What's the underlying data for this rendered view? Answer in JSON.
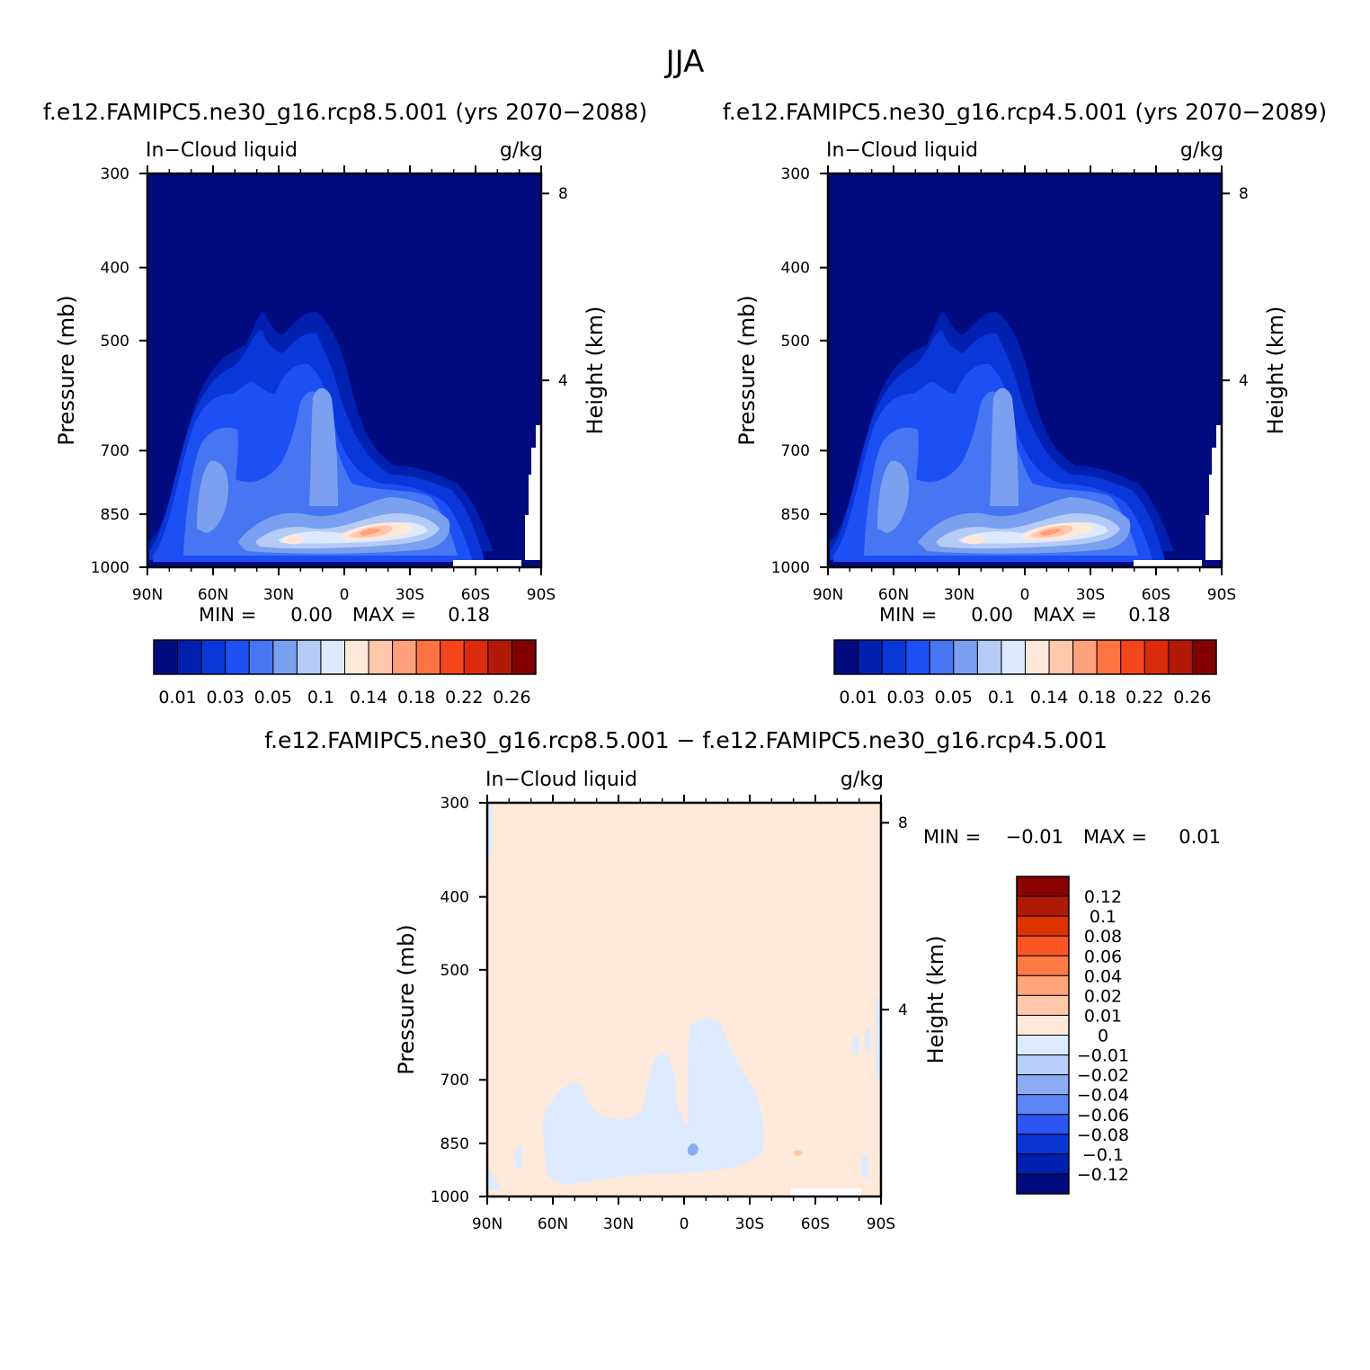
{
  "page": {
    "title": "JJA",
    "diff_title": "f.e12.FAMIPC5.ne30_g16.rcp8.5.001 − f.e12.FAMIPC5.ne30_g16.rcp4.5.001"
  },
  "palette": {
    "abs": [
      "#000b80",
      "#0020b0",
      "#0a37d8",
      "#1c50f5",
      "#4676f2",
      "#7ba0f0",
      "#b4cbf6",
      "#dbeaff",
      "#ffe8d8",
      "#ffc7ac",
      "#ffa07a",
      "#ff7340",
      "#f5461a",
      "#dc2b0a",
      "#b31a06",
      "#820000"
    ],
    "diff_above_to_below": [
      "#8b0000",
      "#b01a05",
      "#dd3300",
      "#ff5525",
      "#ff7a45",
      "#ffa37a",
      "#ffc8aa",
      "#ffe9da",
      "#dcebff",
      "#b8cdfa",
      "#8cabf5",
      "#5b85f2",
      "#2a57f2",
      "#0a35d5",
      "#0020b0",
      "#000b80"
    ]
  },
  "chart_data": [
    {
      "type": "heatmap",
      "title": "f.e12.FAMIPC5.ne30_g16.rcp8.5.001 (yrs 2070−2088)",
      "variable": "In−Cloud liquid",
      "units": "g/kg",
      "xlabel": "",
      "ylabel": "Pressure (mb)",
      "y2label": "Height (km)",
      "x_ticks": [
        "90N",
        "60N",
        "30N",
        "0",
        "30S",
        "60S",
        "90S"
      ],
      "x_range": [
        90,
        -90
      ],
      "y_ticks": [
        300,
        400,
        500,
        700,
        850,
        1000
      ],
      "y_range": [
        1000,
        300
      ],
      "y_scale": "log",
      "y2_ticks": [
        "8",
        "4"
      ],
      "min_label": "MIN =",
      "min_value": "0.00",
      "max_label": "MAX =",
      "max_value": "0.18",
      "colorbar_labels": [
        "0.01",
        "0.03",
        "0.05",
        "0.1",
        "0.14",
        "0.18",
        "0.22",
        "0.26"
      ],
      "colorbar_levels": [
        "0",
        "0.01",
        "0.02",
        "0.03",
        "0.04",
        "0.05",
        "0.08",
        "0.1",
        "0.12",
        "0.14",
        "0.16",
        "0.18",
        "0.2",
        "0.22",
        "0.24",
        "0.26"
      ],
      "legend_placement": "bottom"
    },
    {
      "type": "heatmap",
      "title": "f.e12.FAMIPC5.ne30_g16.rcp4.5.001 (yrs 2070−2089)",
      "variable": "In−Cloud liquid",
      "units": "g/kg",
      "xlabel": "",
      "ylabel": "Pressure (mb)",
      "y2label": "Height (km)",
      "x_ticks": [
        "90N",
        "60N",
        "30N",
        "0",
        "30S",
        "60S",
        "90S"
      ],
      "x_range": [
        90,
        -90
      ],
      "y_ticks": [
        300,
        400,
        500,
        700,
        850,
        1000
      ],
      "y_range": [
        1000,
        300
      ],
      "y_scale": "log",
      "y2_ticks": [
        "8",
        "4"
      ],
      "min_label": "MIN =",
      "min_value": "0.00",
      "max_label": "MAX =",
      "max_value": "0.18",
      "colorbar_labels": [
        "0.01",
        "0.03",
        "0.05",
        "0.1",
        "0.14",
        "0.18",
        "0.22",
        "0.26"
      ],
      "colorbar_levels": [
        "0",
        "0.01",
        "0.02",
        "0.03",
        "0.04",
        "0.05",
        "0.08",
        "0.1",
        "0.12",
        "0.14",
        "0.16",
        "0.18",
        "0.2",
        "0.22",
        "0.24",
        "0.26"
      ],
      "legend_placement": "bottom"
    },
    {
      "type": "heatmap",
      "title": "f.e12.FAMIPC5.ne30_g16.rcp8.5.001 − f.e12.FAMIPC5.ne30_g16.rcp4.5.001",
      "variable": "In−Cloud liquid",
      "units": "g/kg",
      "xlabel": "",
      "ylabel": "Pressure (mb)",
      "y2label": "Height (km)",
      "x_ticks": [
        "90N",
        "60N",
        "30N",
        "0",
        "30S",
        "60S",
        "90S"
      ],
      "x_range": [
        90,
        -90
      ],
      "y_ticks": [
        300,
        400,
        500,
        700,
        850,
        1000
      ],
      "y_range": [
        1000,
        300
      ],
      "y_scale": "log",
      "y2_ticks": [
        "8",
        "4"
      ],
      "min_label": "MIN =",
      "min_value": "−0.01",
      "max_label": "MAX =",
      "max_value": "0.01",
      "colorbar_labels": [
        "0.12",
        "0.1",
        "0.08",
        "0.06",
        "0.04",
        "0.02",
        "0.01",
        "0",
        "−0.01",
        "−0.02",
        "−0.04",
        "−0.06",
        "−0.08",
        "−0.1",
        "−0.12"
      ],
      "legend_placement": "right"
    }
  ]
}
